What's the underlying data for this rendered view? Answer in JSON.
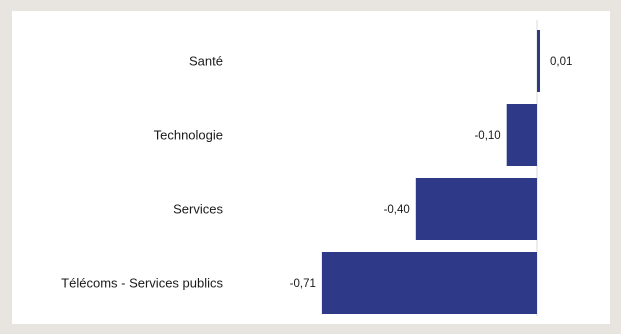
{
  "chart_data": {
    "type": "bar",
    "orientation": "horizontal",
    "categories": [
      "Santé",
      "Technologie",
      "Services",
      "Télécoms - Services publics"
    ],
    "values": [
      0.01,
      -0.1,
      -0.4,
      -0.71
    ],
    "value_labels": [
      "0,01",
      "-0,10",
      "-0,40",
      "-0,71"
    ],
    "title": "",
    "xlabel": "",
    "ylabel": "",
    "xlim": [
      -0.71,
      0.01
    ],
    "grid": false,
    "legend": "none",
    "bar_color": "#2e3a87",
    "zero_line_color": "#d9d9d9"
  }
}
